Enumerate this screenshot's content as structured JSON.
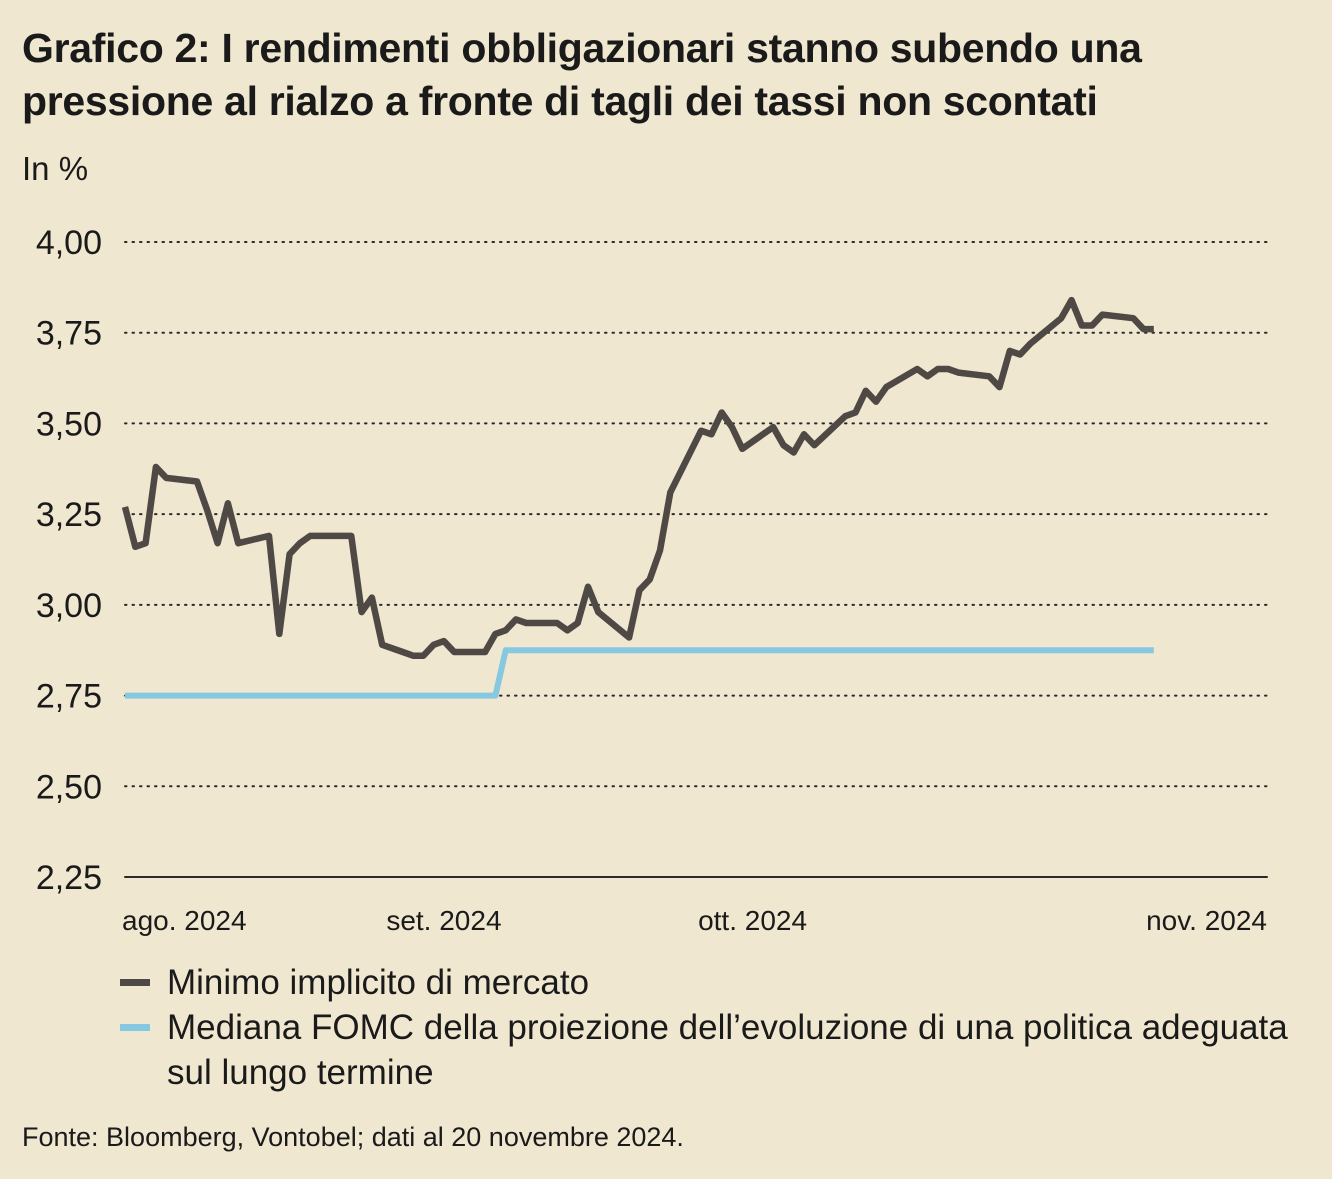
{
  "title": "Grafico 2: I rendimenti obbligazionari stanno subendo una pressione al rialzo a fronte di tagli dei tassi non scontati",
  "unit_label": "In %",
  "source": "Fonte: Bloomberg, Vontobel; dati al 20 novembre 2024.",
  "colors": {
    "background": "#efe7d0",
    "series1": "#4f4945",
    "series2": "#86c8e0",
    "grid": "#2a2a2a"
  },
  "chart_data": {
    "type": "line",
    "ylim": [
      2.25,
      4.0
    ],
    "ytick_values": [
      2.25,
      2.5,
      2.75,
      3.0,
      3.25,
      3.5,
      3.75,
      4.0
    ],
    "ytick_labels": [
      "2,25",
      "2,50",
      "2,75",
      "3,00",
      "3,25",
      "3,50",
      "3,75",
      "4,00"
    ],
    "x_start": "2024-08-01",
    "x_end": "2024-11-20",
    "xtick_dates": [
      "2024-08-01",
      "2024-09-01",
      "2024-10-01",
      "2024-11-01"
    ],
    "xtick_labels": [
      "ago. 2024",
      "set. 2024",
      "ott. 2024",
      "nov. 2024"
    ],
    "grid": "dotted horizontal",
    "legend_position": "bottom",
    "series": [
      {
        "name": "Minimo implicito di mercato",
        "points": [
          [
            "2024-08-01",
            3.27
          ],
          [
            "2024-08-02",
            3.16
          ],
          [
            "2024-08-03",
            3.17
          ],
          [
            "2024-08-04",
            3.38
          ],
          [
            "2024-08-05",
            3.35
          ],
          [
            "2024-08-08",
            3.34
          ],
          [
            "2024-08-09",
            3.26
          ],
          [
            "2024-08-10",
            3.17
          ],
          [
            "2024-08-11",
            3.28
          ],
          [
            "2024-08-12",
            3.17
          ],
          [
            "2024-08-15",
            3.19
          ],
          [
            "2024-08-16",
            2.92
          ],
          [
            "2024-08-17",
            3.14
          ],
          [
            "2024-08-18",
            3.17
          ],
          [
            "2024-08-19",
            3.19
          ],
          [
            "2024-08-23",
            3.19
          ],
          [
            "2024-08-24",
            2.98
          ],
          [
            "2024-08-25",
            3.02
          ],
          [
            "2024-08-26",
            2.89
          ],
          [
            "2024-08-28",
            2.87
          ],
          [
            "2024-08-29",
            2.86
          ],
          [
            "2024-08-30",
            2.86
          ],
          [
            "2024-08-31",
            2.89
          ],
          [
            "2024-09-01",
            2.9
          ],
          [
            "2024-09-02",
            2.87
          ],
          [
            "2024-09-04",
            2.87
          ],
          [
            "2024-09-05",
            2.87
          ],
          [
            "2024-09-06",
            2.92
          ],
          [
            "2024-09-07",
            2.93
          ],
          [
            "2024-09-08",
            2.96
          ],
          [
            "2024-09-09",
            2.95
          ],
          [
            "2024-09-12",
            2.95
          ],
          [
            "2024-09-13",
            2.93
          ],
          [
            "2024-09-14",
            2.95
          ],
          [
            "2024-09-15",
            3.05
          ],
          [
            "2024-09-16",
            2.98
          ],
          [
            "2024-09-19",
            2.91
          ],
          [
            "2024-09-20",
            3.04
          ],
          [
            "2024-09-21",
            3.07
          ],
          [
            "2024-09-22",
            3.15
          ],
          [
            "2024-09-23",
            3.31
          ],
          [
            "2024-09-26",
            3.48
          ],
          [
            "2024-09-27",
            3.47
          ],
          [
            "2024-09-28",
            3.53
          ],
          [
            "2024-09-29",
            3.49
          ],
          [
            "2024-09-30",
            3.43
          ],
          [
            "2024-10-03",
            3.49
          ],
          [
            "2024-10-04",
            3.44
          ],
          [
            "2024-10-05",
            3.42
          ],
          [
            "2024-10-06",
            3.47
          ],
          [
            "2024-10-07",
            3.44
          ],
          [
            "2024-10-10",
            3.52
          ],
          [
            "2024-10-11",
            3.53
          ],
          [
            "2024-10-12",
            3.59
          ],
          [
            "2024-10-13",
            3.56
          ],
          [
            "2024-10-14",
            3.6
          ],
          [
            "2024-10-17",
            3.65
          ],
          [
            "2024-10-18",
            3.63
          ],
          [
            "2024-10-19",
            3.65
          ],
          [
            "2024-10-20",
            3.65
          ],
          [
            "2024-10-21",
            3.64
          ],
          [
            "2024-10-24",
            3.63
          ],
          [
            "2024-10-25",
            3.6
          ],
          [
            "2024-10-26",
            3.7
          ],
          [
            "2024-10-27",
            3.69
          ],
          [
            "2024-10-28",
            3.72
          ],
          [
            "2024-10-31",
            3.79
          ],
          [
            "2024-11-01",
            3.84
          ],
          [
            "2024-11-02",
            3.77
          ],
          [
            "2024-11-03",
            3.77
          ],
          [
            "2024-11-04",
            3.8
          ],
          [
            "2024-11-07",
            3.79
          ],
          [
            "2024-11-08",
            3.76
          ],
          [
            "2024-11-09",
            3.76
          ]
        ]
      },
      {
        "name": "Mediana FOMC della proiezione dell’evoluzione di una politica adeguata sul lungo termine",
        "points": [
          [
            "2024-08-01",
            2.75
          ],
          [
            "2024-09-06",
            2.75
          ],
          [
            "2024-09-07",
            2.875
          ],
          [
            "2024-11-09",
            2.875
          ]
        ]
      }
    ]
  }
}
